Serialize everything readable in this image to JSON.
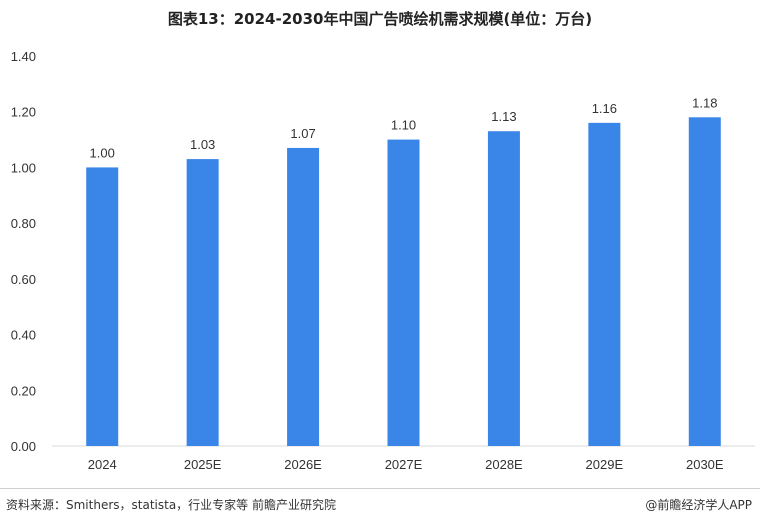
{
  "footer": {
    "source": "资料来源：Smithers，statista，行业专家等 前瞻产业研究院",
    "brand": "@前瞻经济学人APP"
  },
  "chart_data": {
    "type": "bar",
    "title": "图表13：2024-2030年中国广告喷绘机需求规模(单位：万台)",
    "categories": [
      "2024",
      "2025E",
      "2026E",
      "2027E",
      "2028E",
      "2029E",
      "2030E"
    ],
    "values": [
      1.0,
      1.03,
      1.07,
      1.1,
      1.13,
      1.16,
      1.18
    ],
    "data_labels": [
      "1.00",
      "1.03",
      "1.07",
      "1.10",
      "1.13",
      "1.16",
      "1.18"
    ],
    "ylim": [
      0,
      1.4
    ],
    "yticks": [
      "0.00",
      "0.20",
      "0.40",
      "0.60",
      "0.80",
      "1.00",
      "1.20",
      "1.40"
    ],
    "xlabel": "",
    "ylabel": "",
    "grid": false,
    "bar_color": "#3a86e8"
  }
}
